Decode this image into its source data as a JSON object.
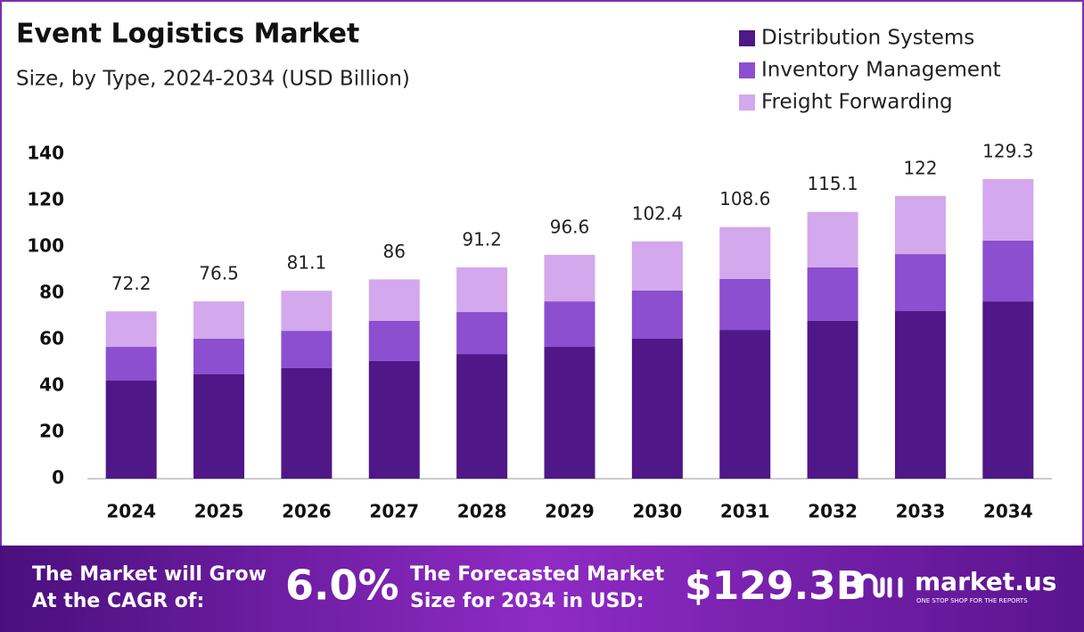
{
  "chart_data": {
    "type": "stacked-bar",
    "title": "Event Logistics Market",
    "subtitle": "Size, by Type, 2024-2034 (USD Billion)",
    "categories": [
      "2024",
      "2025",
      "2026",
      "2027",
      "2028",
      "2029",
      "2030",
      "2031",
      "2032",
      "2033",
      "2034"
    ],
    "series": [
      {
        "name": "Distribution Systems",
        "color": "#4f1787",
        "values": [
          42.3,
          45.0,
          47.7,
          50.8,
          53.8,
          56.9,
          60.4,
          64.2,
          68.1,
          72.3,
          76.5
        ]
      },
      {
        "name": "Inventory Management",
        "color": "#8b4fcf",
        "values": [
          14.6,
          15.4,
          16.1,
          17.3,
          18.1,
          19.6,
          20.8,
          22.0,
          23.1,
          24.6,
          26.2
        ]
      },
      {
        "name": "Freight Forwarding",
        "color": "#d4a8ec",
        "values": [
          15.3,
          16.1,
          17.3,
          17.9,
          19.3,
          20.1,
          21.2,
          22.4,
          23.9,
          25.1,
          26.6
        ]
      }
    ],
    "totals": [
      72.2,
      76.5,
      81.1,
      86.0,
      91.2,
      96.6,
      102.4,
      108.6,
      115.1,
      122.0,
      129.3
    ],
    "ylim": [
      0,
      140
    ],
    "yticks": [
      0,
      20,
      40,
      60,
      80,
      100,
      120,
      140
    ],
    "grid": false,
    "legend": "top-right"
  },
  "footer": {
    "cagr_label": [
      "The Market will Grow",
      "At the CAGR of:"
    ],
    "cagr": "6.0%",
    "forecast_label": [
      "The Forecasted Market",
      "Size for 2034 in USD:"
    ],
    "forecast": "$129.3B",
    "brand": "market.us",
    "tagline": "ONE STOP SHOP FOR THE REPORTS"
  }
}
